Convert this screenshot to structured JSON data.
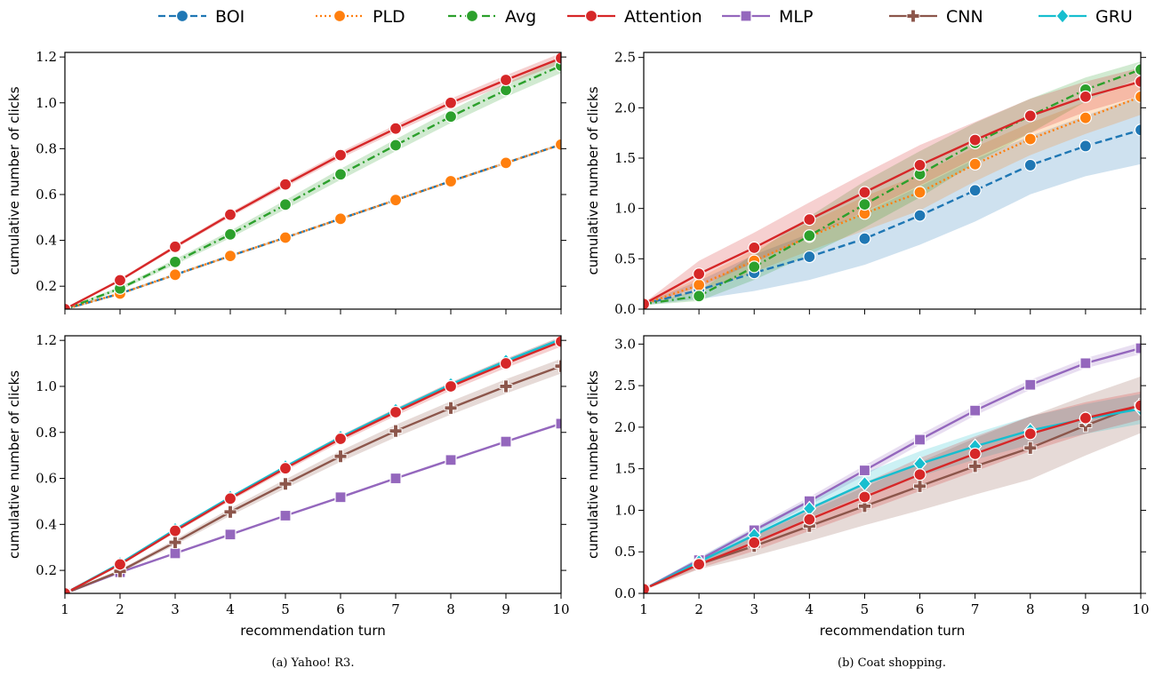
{
  "legend": [
    {
      "name": "BOI",
      "color": "#1f77b4",
      "dash": "dashed",
      "marker": "circle"
    },
    {
      "name": "PLD",
      "color": "#ff7f0e",
      "dash": "dotted",
      "marker": "circle"
    },
    {
      "name": "Avg",
      "color": "#2ca02c",
      "dash": "dashdot",
      "marker": "circle"
    },
    {
      "name": "Attention",
      "color": "#d62728",
      "dash": "solid",
      "marker": "circle"
    },
    {
      "name": "MLP",
      "color": "#9467bd",
      "dash": "solid",
      "marker": "square"
    },
    {
      "name": "CNN",
      "color": "#8c564b",
      "dash": "solid",
      "marker": "plus"
    },
    {
      "name": "GRU",
      "color": "#17becf",
      "dash": "solid",
      "marker": "diamond"
    }
  ],
  "captions": {
    "left": "(a) Yahoo! R3.",
    "right": "(b) Coat shopping."
  },
  "chart_data": [
    {
      "type": "line",
      "panel": "top-left",
      "xlabel": "",
      "ylabel": "cumulative number of clicks",
      "xlim": [
        1,
        10
      ],
      "ylim": [
        0.1,
        1.22
      ],
      "x": [
        1,
        2,
        3,
        4,
        5,
        6,
        7,
        8,
        9,
        10
      ],
      "yticks": [
        0.2,
        0.4,
        0.6,
        0.8,
        1.0,
        1.2
      ],
      "ytick_labels": [
        "0.2",
        "0.4",
        "0.6",
        "0.8",
        "1.0",
        "1.2"
      ],
      "xticks": [
        1,
        2,
        3,
        4,
        5,
        6,
        7,
        8,
        9,
        10
      ],
      "xtick_labels": [],
      "series": [
        {
          "name": "BOI",
          "values": [
            0.1,
            0.168,
            0.25,
            0.332,
            0.412,
            0.494,
            0.576,
            0.658,
            0.738,
            0.818
          ],
          "band": [
            0.005,
            0.005,
            0.005,
            0.005,
            0.005,
            0.005,
            0.005,
            0.005,
            0.005,
            0.005
          ]
        },
        {
          "name": "PLD",
          "values": [
            0.1,
            0.168,
            0.25,
            0.332,
            0.412,
            0.494,
            0.576,
            0.658,
            0.738,
            0.818
          ],
          "band": [
            0.005,
            0.005,
            0.005,
            0.005,
            0.005,
            0.005,
            0.005,
            0.005,
            0.005,
            0.005
          ]
        },
        {
          "name": "Avg",
          "values": [
            0.1,
            0.19,
            0.306,
            0.426,
            0.556,
            0.688,
            0.815,
            0.94,
            1.056,
            1.162
          ],
          "band": [
            0.005,
            0.008,
            0.012,
            0.016,
            0.02,
            0.024,
            0.026,
            0.028,
            0.03,
            0.032
          ]
        },
        {
          "name": "Attention",
          "values": [
            0.1,
            0.226,
            0.372,
            0.512,
            0.644,
            0.772,
            0.888,
            1.0,
            1.1,
            1.195
          ],
          "band": [
            0.004,
            0.006,
            0.008,
            0.01,
            0.012,
            0.014,
            0.016,
            0.018,
            0.02,
            0.022
          ]
        }
      ]
    },
    {
      "type": "line",
      "panel": "top-right",
      "xlabel": "",
      "ylabel": "cumulative number of clicks",
      "xlim": [
        1,
        10
      ],
      "ylim": [
        0,
        2.55
      ],
      "x": [
        1,
        2,
        3,
        4,
        5,
        6,
        7,
        8,
        9,
        10
      ],
      "yticks": [
        0.0,
        0.5,
        1.0,
        1.5,
        2.0,
        2.5
      ],
      "ytick_labels": [
        "0.0",
        "0.5",
        "1.0",
        "1.5",
        "2.0",
        "2.5"
      ],
      "xticks": [
        1,
        2,
        3,
        4,
        5,
        6,
        7,
        8,
        9,
        10
      ],
      "xtick_labels": [],
      "series": [
        {
          "name": "BOI",
          "values": [
            0.05,
            0.19,
            0.36,
            0.52,
            0.7,
            0.93,
            1.18,
            1.43,
            1.62,
            1.78
          ],
          "band": [
            0.01,
            0.09,
            0.18,
            0.23,
            0.26,
            0.29,
            0.31,
            0.29,
            0.3,
            0.34
          ]
        },
        {
          "name": "PLD",
          "values": [
            0.05,
            0.24,
            0.48,
            0.72,
            0.95,
            1.16,
            1.44,
            1.69,
            1.9,
            2.11
          ],
          "band": [
            0.01,
            0.07,
            0.11,
            0.14,
            0.17,
            0.18,
            0.17,
            0.16,
            0.16,
            0.18
          ]
        },
        {
          "name": "Avg",
          "values": [
            0.05,
            0.13,
            0.42,
            0.73,
            1.04,
            1.34,
            1.65,
            1.92,
            2.18,
            2.38
          ],
          "band": [
            0.01,
            0.05,
            0.13,
            0.19,
            0.23,
            0.23,
            0.2,
            0.17,
            0.12,
            0.08
          ]
        },
        {
          "name": "Attention",
          "values": [
            0.05,
            0.35,
            0.61,
            0.89,
            1.16,
            1.43,
            1.68,
            1.92,
            2.11,
            2.26
          ],
          "band": [
            0.01,
            0.13,
            0.15,
            0.17,
            0.19,
            0.2,
            0.18,
            0.17,
            0.15,
            0.14
          ]
        }
      ]
    },
    {
      "type": "line",
      "panel": "bottom-left",
      "xlabel": "recommendation turn",
      "ylabel": "cumulative number of clicks",
      "xlim": [
        1,
        10
      ],
      "ylim": [
        0.1,
        1.22
      ],
      "x": [
        1,
        2,
        3,
        4,
        5,
        6,
        7,
        8,
        9,
        10
      ],
      "yticks": [
        0.2,
        0.4,
        0.6,
        0.8,
        1.0,
        1.2
      ],
      "ytick_labels": [
        "0.2",
        "0.4",
        "0.6",
        "0.8",
        "1.0",
        "1.2"
      ],
      "xticks": [
        1,
        2,
        3,
        4,
        5,
        6,
        7,
        8,
        9,
        10
      ],
      "xtick_labels": [
        "1",
        "2",
        "3",
        "4",
        "5",
        "6",
        "7",
        "8",
        "9",
        "10"
      ],
      "series": [
        {
          "name": "MLP",
          "values": [
            0.1,
            0.192,
            0.274,
            0.356,
            0.438,
            0.518,
            0.6,
            0.68,
            0.76,
            0.838
          ],
          "band": [
            0.003,
            0.004,
            0.004,
            0.005,
            0.005,
            0.005,
            0.005,
            0.005,
            0.005,
            0.006
          ]
        },
        {
          "name": "CNN",
          "values": [
            0.1,
            0.196,
            0.322,
            0.454,
            0.576,
            0.696,
            0.806,
            0.906,
            1.0,
            1.088
          ],
          "band": [
            0.004,
            0.008,
            0.012,
            0.016,
            0.02,
            0.024,
            0.027,
            0.029,
            0.031,
            0.032
          ]
        },
        {
          "name": "GRU",
          "values": [
            0.1,
            0.23,
            0.378,
            0.518,
            0.651,
            0.779,
            0.896,
            1.008,
            1.11,
            1.205
          ],
          "band": [
            0.003,
            0.004,
            0.005,
            0.006,
            0.007,
            0.008,
            0.008,
            0.009,
            0.01,
            0.01
          ]
        },
        {
          "name": "Attention",
          "values": [
            0.1,
            0.226,
            0.372,
            0.512,
            0.644,
            0.772,
            0.888,
            1.0,
            1.1,
            1.195
          ],
          "band": [
            0.004,
            0.006,
            0.008,
            0.01,
            0.012,
            0.014,
            0.016,
            0.018,
            0.02,
            0.022
          ]
        }
      ]
    },
    {
      "type": "line",
      "panel": "bottom-right",
      "xlabel": "recommendation turn",
      "ylabel": "cumulative number of clicks",
      "xlim": [
        1,
        10
      ],
      "ylim": [
        0,
        3.1
      ],
      "x": [
        1,
        2,
        3,
        4,
        5,
        6,
        7,
        8,
        9,
        10
      ],
      "yticks": [
        0.0,
        0.5,
        1.0,
        1.5,
        2.0,
        2.5,
        3.0
      ],
      "ytick_labels": [
        "0.0",
        "0.5",
        "1.0",
        "1.5",
        "2.0",
        "2.5",
        "3.0"
      ],
      "xticks": [
        1,
        2,
        3,
        4,
        5,
        6,
        7,
        8,
        9,
        10
      ],
      "xtick_labels": [
        "1",
        "2",
        "3",
        "4",
        "5",
        "6",
        "7",
        "8",
        "9",
        "10"
      ],
      "series": [
        {
          "name": "MLP",
          "values": [
            0.05,
            0.4,
            0.76,
            1.11,
            1.48,
            1.85,
            2.2,
            2.51,
            2.77,
            2.95
          ],
          "band": [
            0.01,
            0.03,
            0.04,
            0.05,
            0.06,
            0.06,
            0.06,
            0.06,
            0.06,
            0.07
          ]
        },
        {
          "name": "CNN",
          "values": [
            0.05,
            0.35,
            0.57,
            0.81,
            1.05,
            1.29,
            1.53,
            1.75,
            2.02,
            2.27
          ],
          "band": [
            0.01,
            0.06,
            0.12,
            0.18,
            0.23,
            0.29,
            0.34,
            0.38,
            0.36,
            0.34
          ]
        },
        {
          "name": "GRU",
          "values": [
            0.05,
            0.38,
            0.7,
            1.02,
            1.32,
            1.56,
            1.77,
            1.96,
            2.1,
            2.22
          ],
          "band": [
            0.01,
            0.05,
            0.08,
            0.11,
            0.13,
            0.15,
            0.16,
            0.17,
            0.18,
            0.18
          ]
        },
        {
          "name": "Attention",
          "values": [
            0.05,
            0.35,
            0.61,
            0.89,
            1.16,
            1.43,
            1.68,
            1.92,
            2.11,
            2.26
          ],
          "band": [
            0.01,
            0.05,
            0.1,
            0.14,
            0.17,
            0.2,
            0.21,
            0.21,
            0.19,
            0.17
          ]
        }
      ]
    }
  ]
}
